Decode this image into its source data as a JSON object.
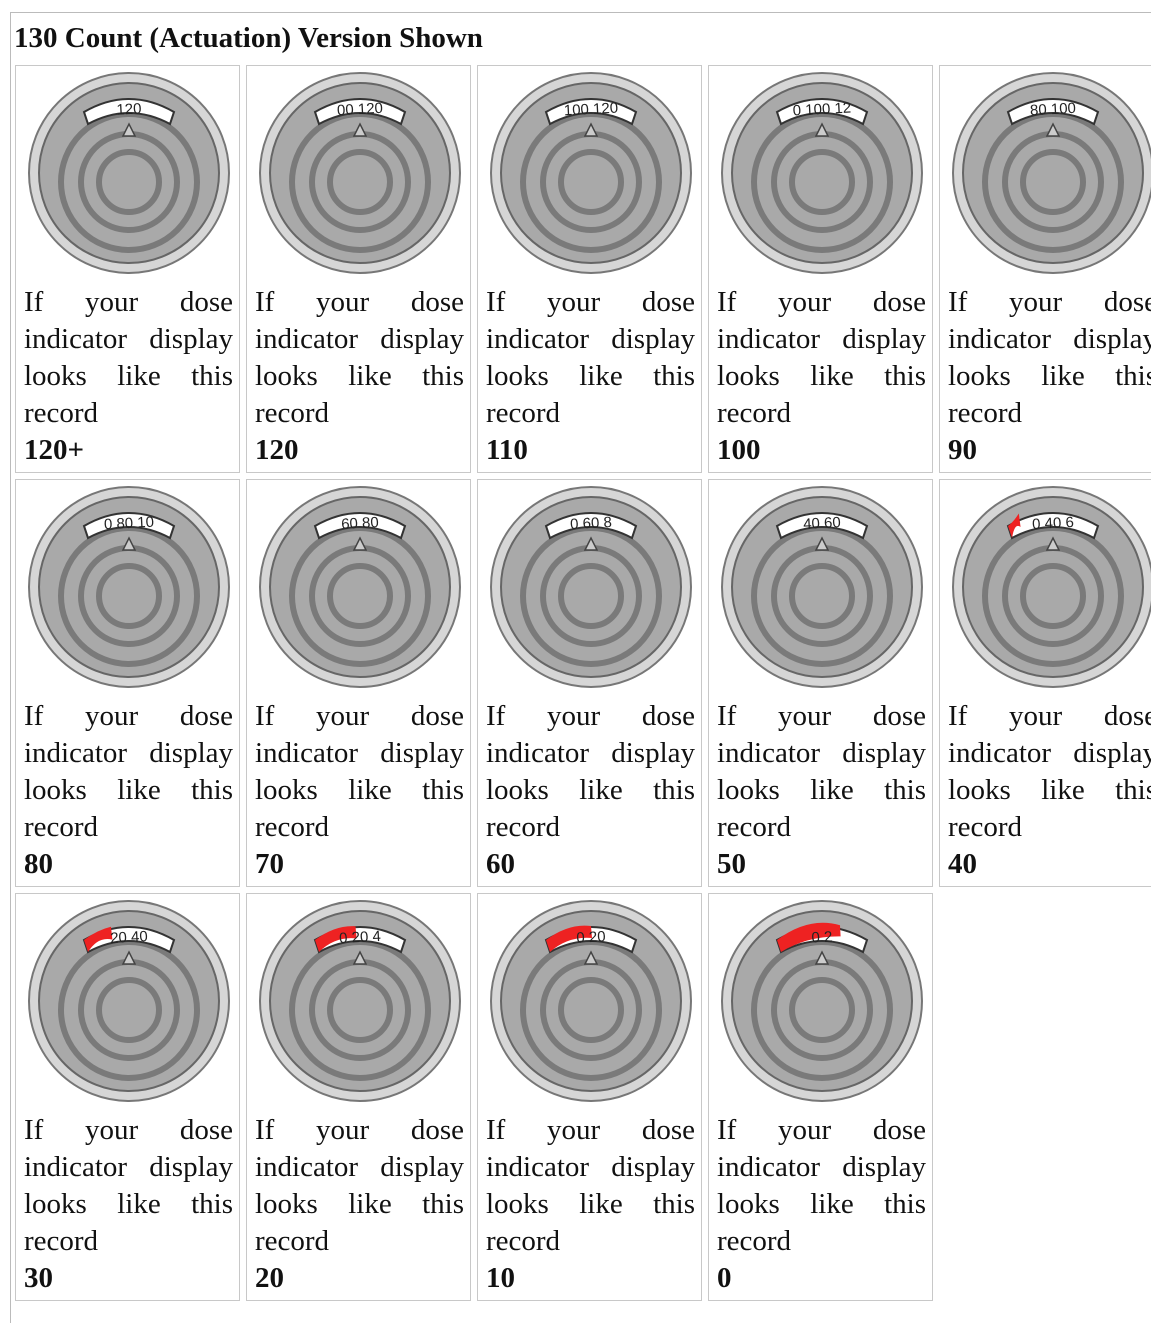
{
  "header": {
    "title": "130 Count (Actuation) Version Shown"
  },
  "cells": [
    {
      "window": "120",
      "text": "If your dose indicator display looks like this record",
      "record": "120+"
    },
    {
      "window": "00 120",
      "text": "If your dose indicator display looks like this record",
      "record": "120"
    },
    {
      "window": "100 120",
      "text": "If your dose indicator display looks like this record",
      "record": "110"
    },
    {
      "window": "0 100 12",
      "text": "If your dose indicator display looks like this record",
      "record": "100"
    },
    {
      "window": "80 100",
      "text": "If your dose indicator display looks like this record",
      "record": "90"
    },
    {
      "window": "0 80 10",
      "text": "If your dose indicator display looks like this record",
      "record": "80"
    },
    {
      "window": "60 80",
      "text": "If your dose indicator display looks like this record",
      "record": "70"
    },
    {
      "window": "0 60 8",
      "text": "If your dose indicator display looks like this record",
      "record": "60"
    },
    {
      "window": "40 60",
      "text": "If your dose indicator display looks like this record",
      "record": "50"
    },
    {
      "window": "0 40 6",
      "text": "If your dose indicator display looks like this record",
      "record": "40"
    },
    {
      "window": "20 40",
      "text": "If your dose indicator display looks like this record",
      "record": "30"
    },
    {
      "window": "0 20 4",
      "text": "If your dose indicator display looks like this record",
      "record": "20"
    },
    {
      "window": "0 20",
      "text": "If your dose indicator display looks like this record",
      "record": "10"
    },
    {
      "window": "0 2",
      "text": "If your dose indicator display looks like this record",
      "record": "0"
    }
  ]
}
